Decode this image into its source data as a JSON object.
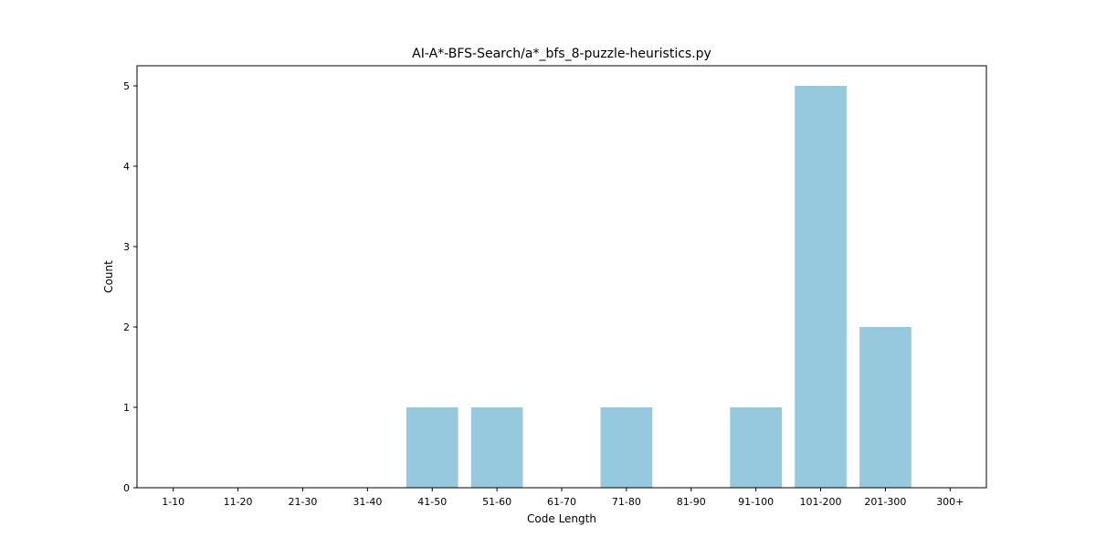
{
  "chart_data": {
    "type": "bar",
    "title": "AI-A*-BFS-Search/a*_bfs_8-puzzle-heuristics.py",
    "xlabel": "Code Length",
    "ylabel": "Count",
    "categories": [
      "1-10",
      "11-20",
      "21-30",
      "31-40",
      "41-50",
      "51-60",
      "61-70",
      "71-80",
      "81-90",
      "91-100",
      "101-200",
      "201-300",
      "300+"
    ],
    "values": [
      0,
      0,
      0,
      0,
      1,
      1,
      0,
      1,
      0,
      1,
      5,
      2,
      0
    ],
    "ylim": [
      0,
      5.25
    ],
    "yticks": [
      0,
      1,
      2,
      3,
      4,
      5
    ],
    "bar_color": "#96c9de",
    "grid": false,
    "legend": false
  }
}
